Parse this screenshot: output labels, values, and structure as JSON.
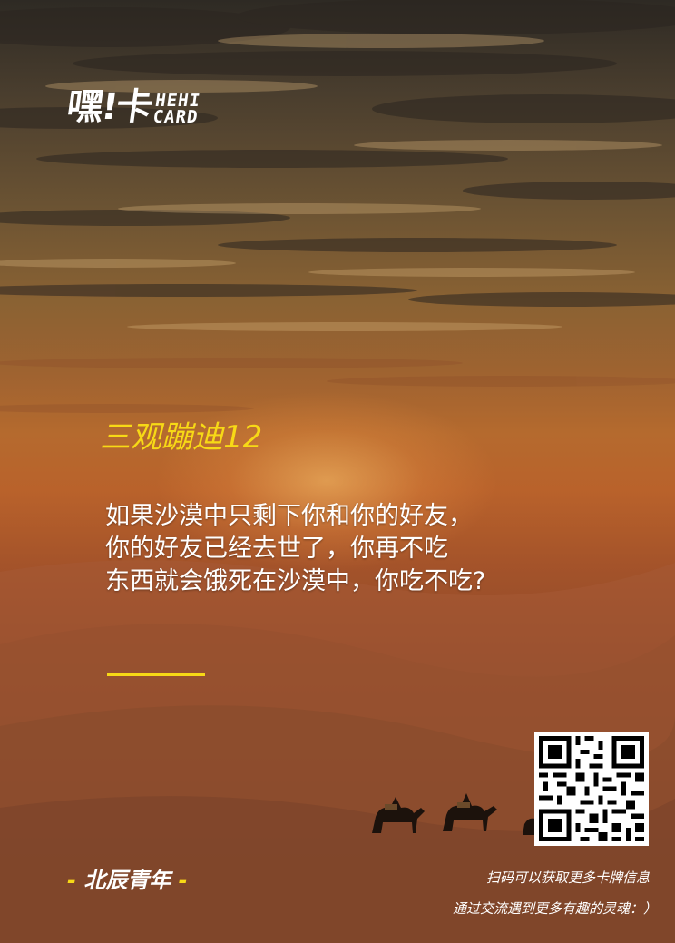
{
  "logo": {
    "cn_text": "嘿!卡",
    "en_line1": "HEHI",
    "en_line2": "CARD"
  },
  "card": {
    "title": "三观蹦迪12",
    "question_lines": [
      "如果沙漠中只剩下你和你的好友，",
      "你的好友已经去世了，你再不吃",
      "东西就会饿死在沙漠中，你吃不吃?"
    ]
  },
  "brand": {
    "dash_left": "- ",
    "name": "北辰青年",
    "dash_right": " -"
  },
  "footer": {
    "line1": "扫码可以获取更多卡牌信息",
    "line2": "通过交流遇到更多有趣的灵魂：）"
  },
  "colors": {
    "accent_yellow": "#f7d916",
    "text_white": "#ffffff"
  },
  "icons": {
    "qr": "qr-code-icon",
    "caravan": "camel-caravan-icon"
  }
}
